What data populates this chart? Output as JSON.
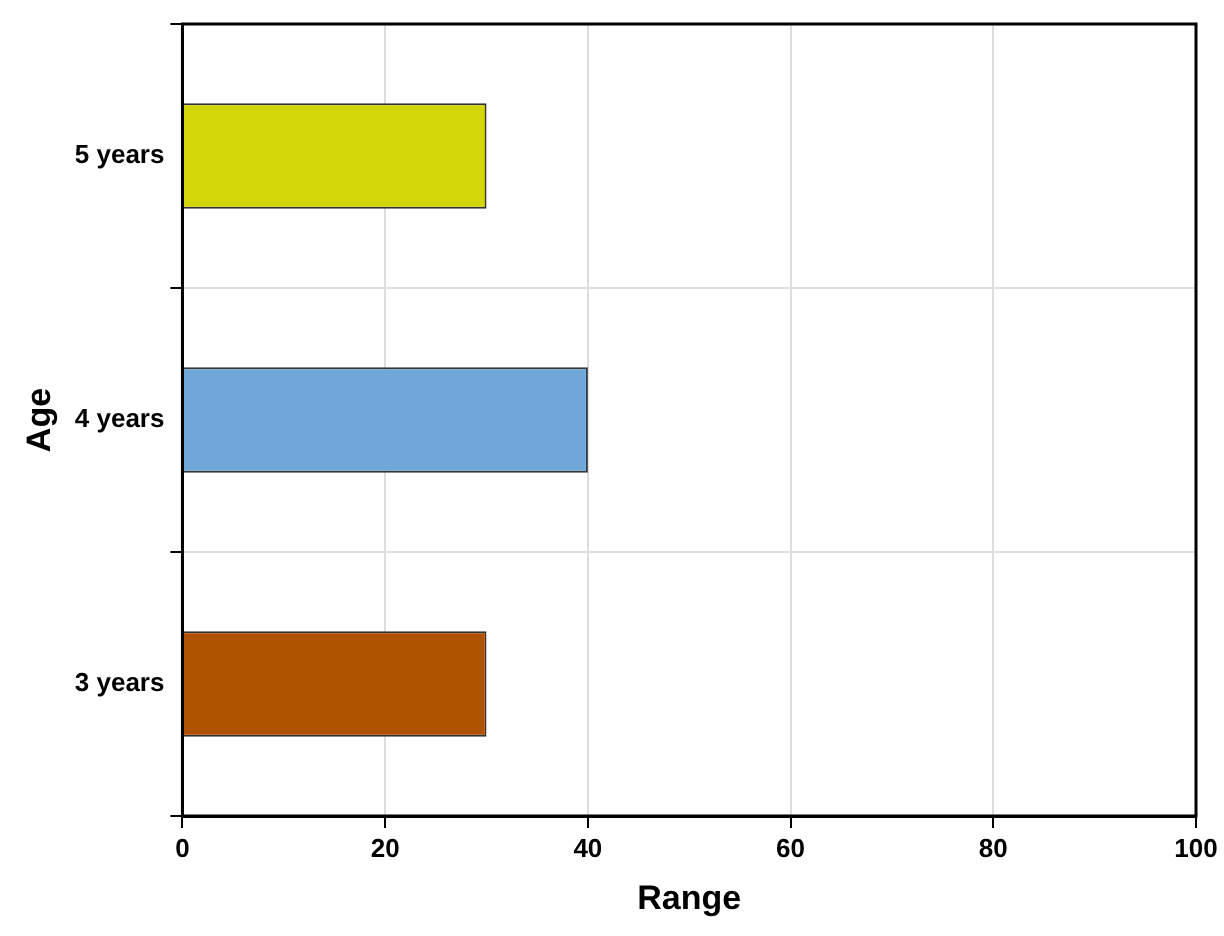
{
  "chart_data": {
    "type": "bar",
    "orientation": "horizontal",
    "xlabel": "Range",
    "ylabel": "Age",
    "categories": [
      "5 years",
      "4 years",
      "3 years"
    ],
    "values": [
      30,
      40,
      30
    ],
    "colors": [
      "#d4d80a",
      "#6fa7d9",
      "#b05300"
    ],
    "xlim": [
      0,
      100
    ],
    "xticks": [
      0,
      20,
      40,
      60,
      80,
      100
    ],
    "grid": true
  }
}
